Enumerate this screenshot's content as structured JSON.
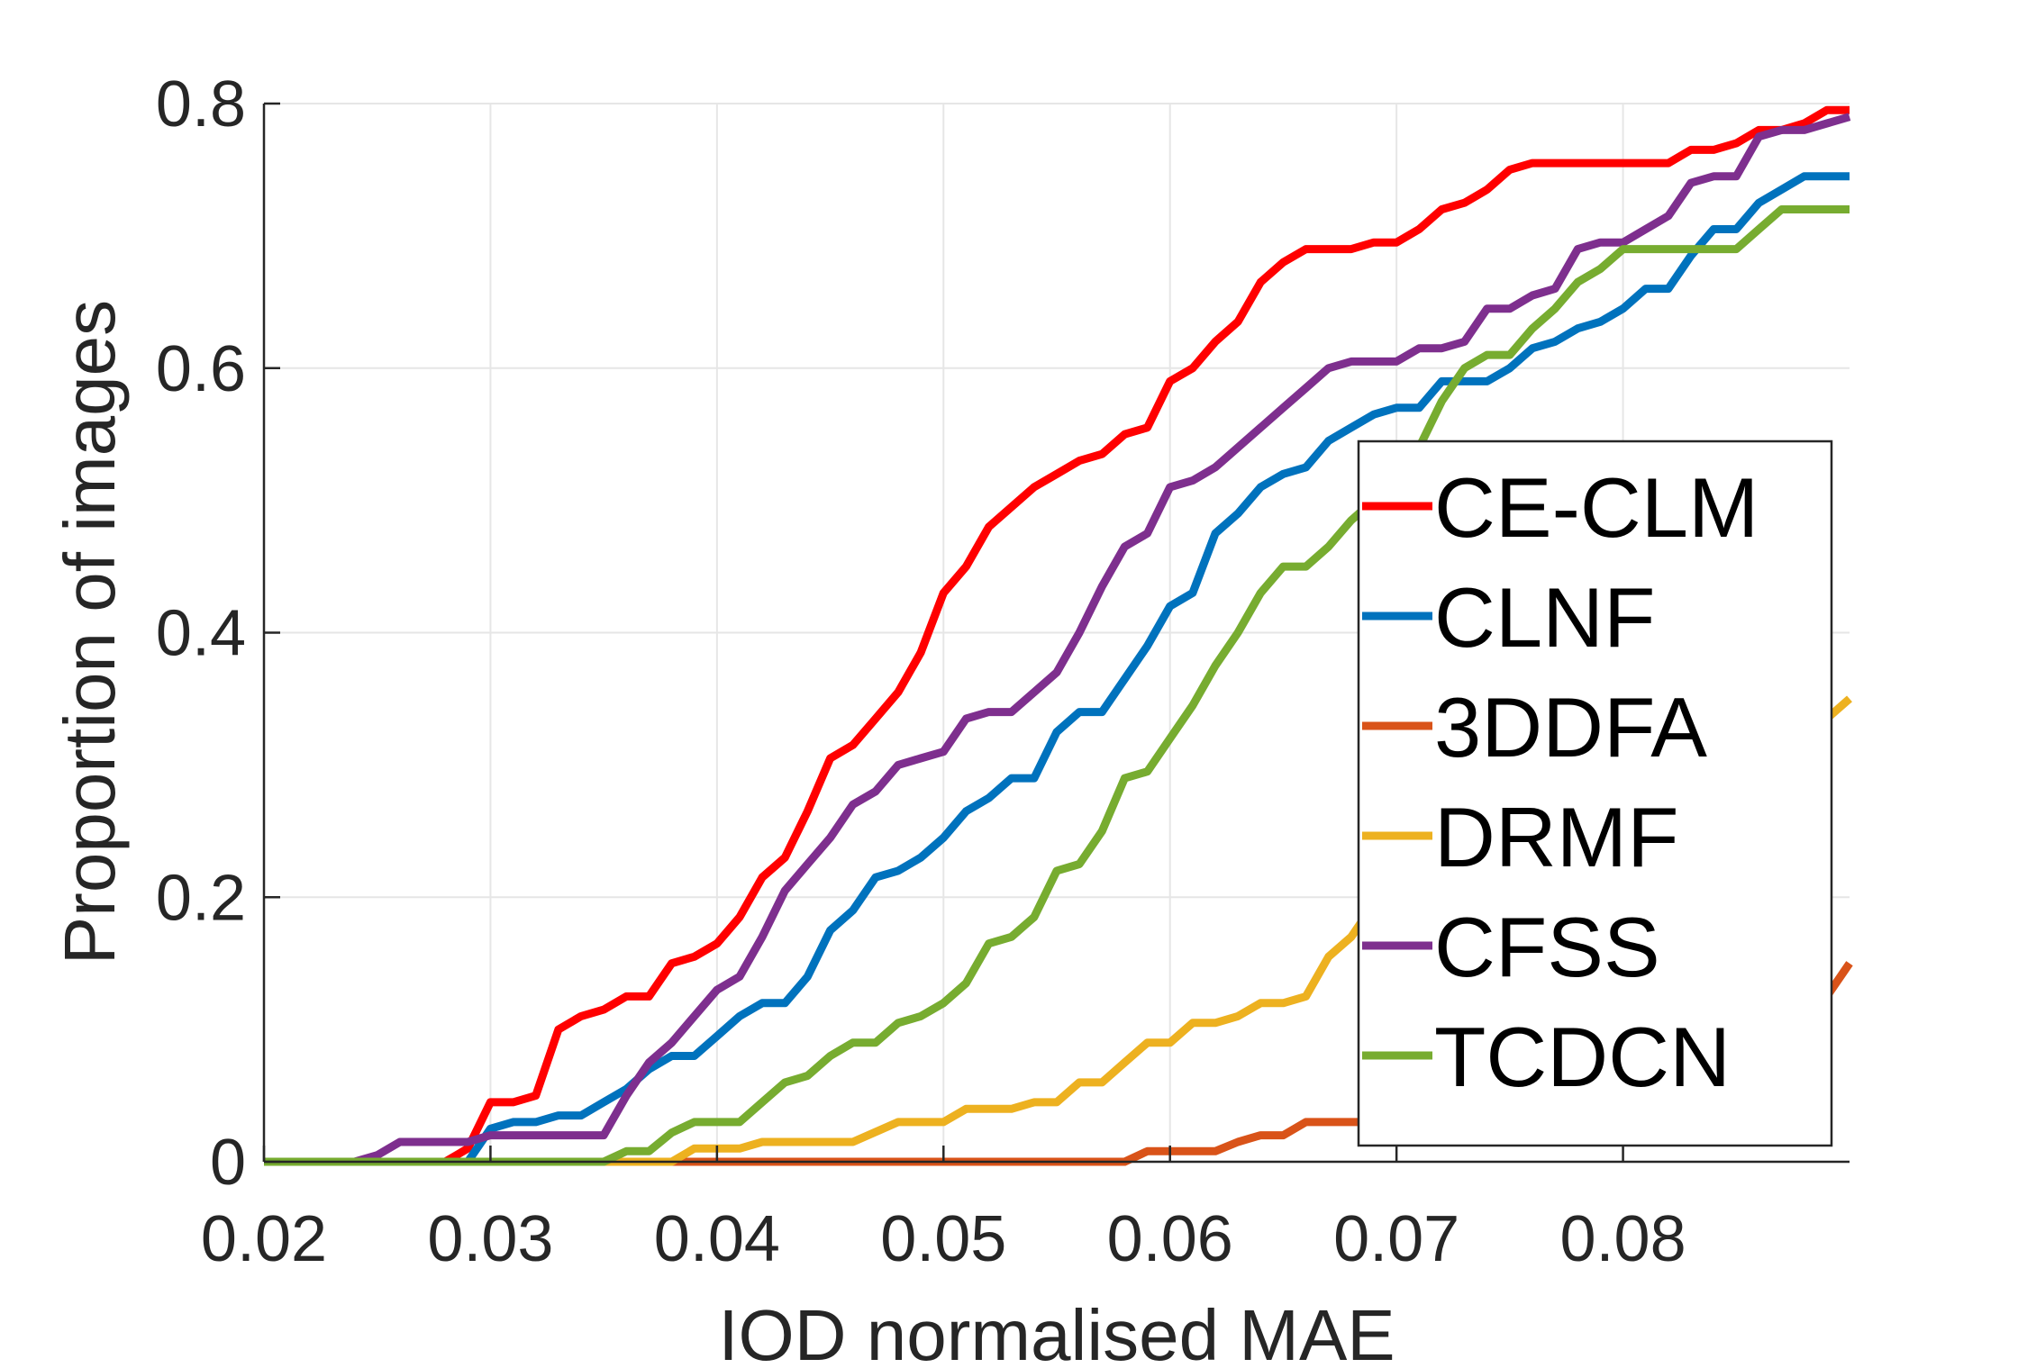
{
  "chart_data": {
    "type": "line",
    "xlabel": "IOD normalised MAE",
    "ylabel": "Proportion of images",
    "xlim": [
      0.02,
      0.09
    ],
    "ylim": [
      0,
      0.8
    ],
    "xticks": [
      0.02,
      0.03,
      0.04,
      0.05,
      0.06,
      0.07,
      0.08
    ],
    "xtick_labels": [
      "0.02",
      "0.03",
      "0.04",
      "0.05",
      "0.06",
      "0.07",
      "0.08"
    ],
    "yticks": [
      0,
      0.2,
      0.4,
      0.6,
      0.8
    ],
    "ytick_labels": [
      "0",
      "0.2",
      "0.4",
      "0.6",
      "0.8"
    ],
    "grid": true,
    "legend_position": "right",
    "series": [
      {
        "name": "CE-CLM",
        "color": "#FF0000",
        "points": [
          [
            0.02,
            0
          ],
          [
            0.028,
            0
          ],
          [
            0.029,
            0.01
          ],
          [
            0.03,
            0.045
          ],
          [
            0.031,
            0.045
          ],
          [
            0.032,
            0.05
          ],
          [
            0.033,
            0.1
          ],
          [
            0.034,
            0.11
          ],
          [
            0.035,
            0.115
          ],
          [
            0.036,
            0.125
          ],
          [
            0.037,
            0.125
          ],
          [
            0.038,
            0.15
          ],
          [
            0.039,
            0.155
          ],
          [
            0.04,
            0.165
          ],
          [
            0.041,
            0.185
          ],
          [
            0.042,
            0.215
          ],
          [
            0.043,
            0.23
          ],
          [
            0.044,
            0.265
          ],
          [
            0.045,
            0.305
          ],
          [
            0.046,
            0.315
          ],
          [
            0.047,
            0.335
          ],
          [
            0.048,
            0.355
          ],
          [
            0.049,
            0.385
          ],
          [
            0.05,
            0.43
          ],
          [
            0.051,
            0.45
          ],
          [
            0.052,
            0.48
          ],
          [
            0.053,
            0.495
          ],
          [
            0.054,
            0.51
          ],
          [
            0.055,
            0.52
          ],
          [
            0.056,
            0.53
          ],
          [
            0.057,
            0.535
          ],
          [
            0.058,
            0.55
          ],
          [
            0.059,
            0.555
          ],
          [
            0.06,
            0.59
          ],
          [
            0.061,
            0.6
          ],
          [
            0.062,
            0.62
          ],
          [
            0.063,
            0.635
          ],
          [
            0.064,
            0.665
          ],
          [
            0.065,
            0.68
          ],
          [
            0.066,
            0.69
          ],
          [
            0.068,
            0.69
          ],
          [
            0.069,
            0.695
          ],
          [
            0.07,
            0.695
          ],
          [
            0.071,
            0.705
          ],
          [
            0.072,
            0.72
          ],
          [
            0.073,
            0.725
          ],
          [
            0.074,
            0.735
          ],
          [
            0.075,
            0.75
          ],
          [
            0.076,
            0.755
          ],
          [
            0.082,
            0.755
          ],
          [
            0.083,
            0.765
          ],
          [
            0.084,
            0.765
          ],
          [
            0.085,
            0.77
          ],
          [
            0.086,
            0.78
          ],
          [
            0.087,
            0.78
          ],
          [
            0.088,
            0.785
          ],
          [
            0.089,
            0.795
          ],
          [
            0.09,
            0.795
          ]
        ]
      },
      {
        "name": "CLNF",
        "color": "#0072BD",
        "points": [
          [
            0.02,
            0
          ],
          [
            0.029,
            0
          ],
          [
            0.03,
            0.025
          ],
          [
            0.031,
            0.03
          ],
          [
            0.032,
            0.03
          ],
          [
            0.033,
            0.035
          ],
          [
            0.034,
            0.035
          ],
          [
            0.035,
            0.045
          ],
          [
            0.036,
            0.055
          ],
          [
            0.037,
            0.07
          ],
          [
            0.038,
            0.08
          ],
          [
            0.039,
            0.08
          ],
          [
            0.04,
            0.095
          ],
          [
            0.041,
            0.11
          ],
          [
            0.042,
            0.12
          ],
          [
            0.043,
            0.12
          ],
          [
            0.044,
            0.14
          ],
          [
            0.045,
            0.175
          ],
          [
            0.046,
            0.19
          ],
          [
            0.047,
            0.215
          ],
          [
            0.048,
            0.22
          ],
          [
            0.049,
            0.23
          ],
          [
            0.05,
            0.245
          ],
          [
            0.051,
            0.265
          ],
          [
            0.052,
            0.275
          ],
          [
            0.053,
            0.29
          ],
          [
            0.054,
            0.29
          ],
          [
            0.055,
            0.325
          ],
          [
            0.056,
            0.34
          ],
          [
            0.057,
            0.34
          ],
          [
            0.058,
            0.365
          ],
          [
            0.059,
            0.39
          ],
          [
            0.06,
            0.42
          ],
          [
            0.061,
            0.43
          ],
          [
            0.062,
            0.475
          ],
          [
            0.063,
            0.49
          ],
          [
            0.064,
            0.51
          ],
          [
            0.065,
            0.52
          ],
          [
            0.066,
            0.525
          ],
          [
            0.067,
            0.545
          ],
          [
            0.068,
            0.555
          ],
          [
            0.069,
            0.565
          ],
          [
            0.07,
            0.57
          ],
          [
            0.071,
            0.57
          ],
          [
            0.072,
            0.59
          ],
          [
            0.073,
            0.59
          ],
          [
            0.074,
            0.59
          ],
          [
            0.075,
            0.6
          ],
          [
            0.076,
            0.615
          ],
          [
            0.077,
            0.62
          ],
          [
            0.078,
            0.63
          ],
          [
            0.079,
            0.635
          ],
          [
            0.08,
            0.645
          ],
          [
            0.081,
            0.66
          ],
          [
            0.082,
            0.66
          ],
          [
            0.083,
            0.685
          ],
          [
            0.084,
            0.705
          ],
          [
            0.085,
            0.705
          ],
          [
            0.086,
            0.725
          ],
          [
            0.087,
            0.735
          ],
          [
            0.088,
            0.745
          ],
          [
            0.089,
            0.745
          ],
          [
            0.09,
            0.745
          ]
        ]
      },
      {
        "name": "3DDFA",
        "color": "#D95319",
        "points": [
          [
            0.02,
            0
          ],
          [
            0.058,
            0
          ],
          [
            0.059,
            0.008
          ],
          [
            0.062,
            0.008
          ],
          [
            0.063,
            0.015
          ],
          [
            0.064,
            0.02
          ],
          [
            0.065,
            0.02
          ],
          [
            0.066,
            0.03
          ],
          [
            0.068,
            0.03
          ],
          [
            0.07,
            0.03
          ],
          [
            0.086,
            0.06
          ],
          [
            0.088,
            0.1
          ],
          [
            0.09,
            0.15
          ]
        ]
      },
      {
        "name": "DRMF",
        "color": "#EDB120",
        "points": [
          [
            0.02,
            0
          ],
          [
            0.036,
            0
          ],
          [
            0.038,
            0
          ],
          [
            0.039,
            0.01
          ],
          [
            0.041,
            0.01
          ],
          [
            0.042,
            0.015
          ],
          [
            0.046,
            0.015
          ],
          [
            0.048,
            0.03
          ],
          [
            0.05,
            0.03
          ],
          [
            0.051,
            0.04
          ],
          [
            0.053,
            0.04
          ],
          [
            0.054,
            0.045
          ],
          [
            0.055,
            0.045
          ],
          [
            0.056,
            0.06
          ],
          [
            0.057,
            0.06
          ],
          [
            0.058,
            0.075
          ],
          [
            0.059,
            0.09
          ],
          [
            0.06,
            0.09
          ],
          [
            0.061,
            0.105
          ],
          [
            0.062,
            0.105
          ],
          [
            0.063,
            0.11
          ],
          [
            0.064,
            0.12
          ],
          [
            0.065,
            0.12
          ],
          [
            0.066,
            0.125
          ],
          [
            0.067,
            0.155
          ],
          [
            0.068,
            0.17
          ],
          [
            0.069,
            0.195
          ],
          [
            0.07,
            0.2
          ],
          [
            0.086,
            0.29
          ],
          [
            0.088,
            0.32
          ],
          [
            0.09,
            0.35
          ]
        ]
      },
      {
        "name": "CFSS",
        "color": "#7E2F8E",
        "points": [
          [
            0.02,
            0
          ],
          [
            0.024,
            0
          ],
          [
            0.025,
            0.005
          ],
          [
            0.026,
            0.015
          ],
          [
            0.029,
            0.015
          ],
          [
            0.03,
            0.02
          ],
          [
            0.031,
            0.02
          ],
          [
            0.035,
            0.02
          ],
          [
            0.036,
            0.05
          ],
          [
            0.037,
            0.075
          ],
          [
            0.038,
            0.09
          ],
          [
            0.039,
            0.11
          ],
          [
            0.04,
            0.13
          ],
          [
            0.041,
            0.14
          ],
          [
            0.042,
            0.17
          ],
          [
            0.043,
            0.205
          ],
          [
            0.044,
            0.225
          ],
          [
            0.045,
            0.245
          ],
          [
            0.046,
            0.27
          ],
          [
            0.047,
            0.28
          ],
          [
            0.048,
            0.3
          ],
          [
            0.049,
            0.305
          ],
          [
            0.05,
            0.31
          ],
          [
            0.051,
            0.335
          ],
          [
            0.052,
            0.34
          ],
          [
            0.053,
            0.34
          ],
          [
            0.054,
            0.355
          ],
          [
            0.055,
            0.37
          ],
          [
            0.056,
            0.4
          ],
          [
            0.057,
            0.435
          ],
          [
            0.058,
            0.465
          ],
          [
            0.059,
            0.475
          ],
          [
            0.06,
            0.51
          ],
          [
            0.061,
            0.515
          ],
          [
            0.062,
            0.525
          ],
          [
            0.063,
            0.54
          ],
          [
            0.064,
            0.555
          ],
          [
            0.065,
            0.57
          ],
          [
            0.066,
            0.585
          ],
          [
            0.067,
            0.6
          ],
          [
            0.068,
            0.605
          ],
          [
            0.069,
            0.605
          ],
          [
            0.07,
            0.605
          ],
          [
            0.071,
            0.615
          ],
          [
            0.072,
            0.615
          ],
          [
            0.073,
            0.62
          ],
          [
            0.074,
            0.645
          ],
          [
            0.075,
            0.645
          ],
          [
            0.076,
            0.655
          ],
          [
            0.077,
            0.66
          ],
          [
            0.078,
            0.69
          ],
          [
            0.079,
            0.695
          ],
          [
            0.08,
            0.695
          ],
          [
            0.081,
            0.705
          ],
          [
            0.082,
            0.715
          ],
          [
            0.083,
            0.74
          ],
          [
            0.084,
            0.745
          ],
          [
            0.085,
            0.745
          ],
          [
            0.086,
            0.775
          ],
          [
            0.087,
            0.78
          ],
          [
            0.088,
            0.78
          ],
          [
            0.089,
            0.785
          ],
          [
            0.09,
            0.79
          ]
        ]
      },
      {
        "name": "TCDCN",
        "color": "#77AC30",
        "points": [
          [
            0.02,
            0
          ],
          [
            0.035,
            0
          ],
          [
            0.036,
            0.008
          ],
          [
            0.037,
            0.008
          ],
          [
            0.038,
            0.022
          ],
          [
            0.039,
            0.03
          ],
          [
            0.04,
            0.03
          ],
          [
            0.041,
            0.03
          ],
          [
            0.042,
            0.045
          ],
          [
            0.043,
            0.06
          ],
          [
            0.044,
            0.065
          ],
          [
            0.045,
            0.08
          ],
          [
            0.046,
            0.09
          ],
          [
            0.047,
            0.09
          ],
          [
            0.048,
            0.105
          ],
          [
            0.049,
            0.11
          ],
          [
            0.05,
            0.12
          ],
          [
            0.051,
            0.135
          ],
          [
            0.052,
            0.165
          ],
          [
            0.053,
            0.17
          ],
          [
            0.054,
            0.185
          ],
          [
            0.055,
            0.22
          ],
          [
            0.056,
            0.225
          ],
          [
            0.057,
            0.25
          ],
          [
            0.058,
            0.29
          ],
          [
            0.059,
            0.295
          ],
          [
            0.06,
            0.32
          ],
          [
            0.061,
            0.345
          ],
          [
            0.062,
            0.375
          ],
          [
            0.063,
            0.4
          ],
          [
            0.064,
            0.43
          ],
          [
            0.065,
            0.45
          ],
          [
            0.066,
            0.45
          ],
          [
            0.067,
            0.465
          ],
          [
            0.068,
            0.485
          ],
          [
            0.069,
            0.5
          ],
          [
            0.07,
            0.52
          ],
          [
            0.071,
            0.54
          ],
          [
            0.072,
            0.575
          ],
          [
            0.073,
            0.6
          ],
          [
            0.074,
            0.61
          ],
          [
            0.075,
            0.61
          ],
          [
            0.076,
            0.63
          ],
          [
            0.077,
            0.645
          ],
          [
            0.078,
            0.665
          ],
          [
            0.079,
            0.675
          ],
          [
            0.08,
            0.69
          ],
          [
            0.081,
            0.69
          ],
          [
            0.082,
            0.69
          ],
          [
            0.083,
            0.69
          ],
          [
            0.084,
            0.69
          ],
          [
            0.085,
            0.69
          ],
          [
            0.086,
            0.705
          ],
          [
            0.087,
            0.72
          ],
          [
            0.088,
            0.72
          ],
          [
            0.089,
            0.72
          ],
          [
            0.09,
            0.72
          ]
        ]
      }
    ]
  }
}
